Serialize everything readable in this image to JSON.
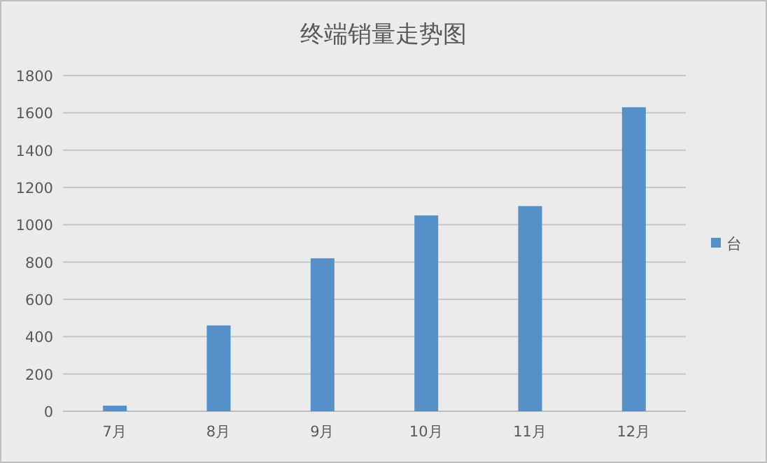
{
  "chart_data": {
    "type": "bar",
    "title": "终端销量走势图",
    "categories": [
      "7月",
      "8月",
      "9月",
      "10月",
      "11月",
      "12月"
    ],
    "series": [
      {
        "name": "台",
        "color": "#5590c8",
        "values": [
          30,
          460,
          820,
          1050,
          1100,
          1630
        ]
      }
    ],
    "ylim": [
      0,
      1800
    ],
    "yticks": [
      0,
      200,
      400,
      600,
      800,
      1000,
      1200,
      1400,
      1600,
      1800
    ],
    "grid": "y",
    "legend": "right"
  }
}
